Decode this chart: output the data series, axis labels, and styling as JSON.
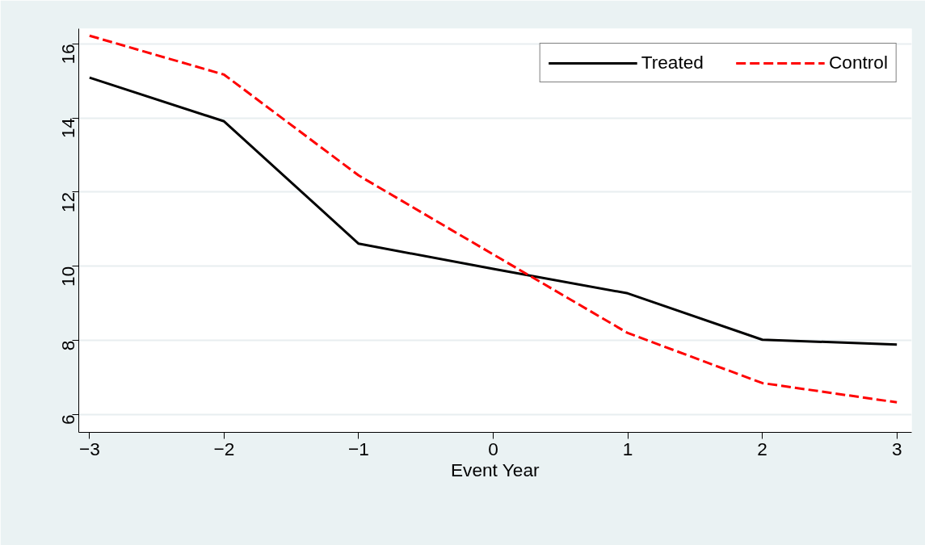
{
  "chart_data": {
    "type": "line",
    "xlabel": "Event Year",
    "x": [
      -3,
      -2,
      -1,
      0,
      1,
      2,
      3
    ],
    "series": [
      {
        "name": "Treated",
        "color": "#000000",
        "line_style": "solid",
        "values": [
          15.09,
          13.91,
          10.61,
          9.93,
          9.27,
          8.02,
          7.89
        ]
      },
      {
        "name": "Control",
        "color": "#ff0000",
        "line_style": "dashed",
        "values": [
          16.22,
          15.17,
          12.45,
          10.32,
          8.2,
          6.85,
          6.33
        ]
      }
    ],
    "xlim": [
      -3.08,
      3.11
    ],
    "ylim": [
      5.52,
      16.41
    ],
    "xticks": [
      {
        "value": -3,
        "label": "−3"
      },
      {
        "value": -2,
        "label": "−2"
      },
      {
        "value": -1,
        "label": "−1"
      },
      0,
      1,
      2,
      3
    ],
    "yticks": [
      6,
      8,
      10,
      12,
      14,
      16
    ],
    "grid": "y",
    "legend": "top right",
    "marker": "none"
  }
}
